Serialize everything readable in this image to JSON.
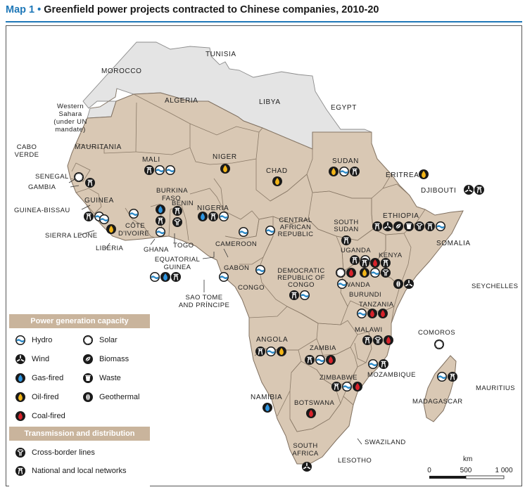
{
  "title": {
    "map_label": "Map 1",
    "bullet": "•",
    "text": "Greenfield power projects contracted to Chinese companies, 2010-20"
  },
  "colors": {
    "accent": "#1f78b8",
    "africa_land": "#d9c8b4",
    "non_focus_land": "#e4e4e4",
    "border": "#7f6f5f",
    "legend_header": "#c9b49c",
    "icon_dark": "#1a1a1a",
    "hydro_blue": "#2e8bc8",
    "gas_blue": "#1f6fb8",
    "oil_yellow": "#f2b518",
    "coal_red": "#d7232b"
  },
  "countries": {
    "tunisia": "TUNISIA",
    "morocco": "MOROCCO",
    "algeria": "ALGERIA",
    "libya": "LIBYA",
    "egypt": "EGYPT",
    "western_sahara": [
      "Western",
      "Sahara",
      "(under UN",
      "mandate)"
    ],
    "cabo_verde": [
      "CABO",
      "VERDE"
    ],
    "mauritania": "MAURITANIA",
    "mali": "MALI",
    "niger": "NIGER",
    "chad": "CHAD",
    "sudan": "SUDAN",
    "eritrea": "ERITREA",
    "djibouti": "DJIBOUTI",
    "senegal": "SENEGAL",
    "gambia": "GAMBIA",
    "guinea_bissau": "GUINEA-BISSAU",
    "guinea": "GUINEA",
    "sierra_leone": "SIERRA LEONE",
    "liberia": "LIBERIA",
    "burkina_faso": [
      "BURKINA",
      "FASO"
    ],
    "benin": "BENIN",
    "cote_divoire": [
      "CÔTE",
      "D'IVOIRE"
    ],
    "ghana": "GHANA",
    "togo": "TOGO",
    "nigeria": "NIGERIA",
    "ethiopia": "ETHIOPIA",
    "somalia": "SOMALIA",
    "car": [
      "CENTRAL",
      "AFRICAN",
      "REPUBLIC"
    ],
    "south_sudan": [
      "SOUTH",
      "SUDAN"
    ],
    "cameroon": "CAMEROON",
    "equatorial_guinea": [
      "EQUATORIAL",
      "GUINEA"
    ],
    "gabon": "GABON",
    "congo": "CONGO",
    "sao_tome": [
      "SAO TOME",
      "AND PRÍNCIPE"
    ],
    "drc": [
      "DEMOCRATIC",
      "REPUBLIC OF",
      "CONGO"
    ],
    "uganda": "UGANDA",
    "kenya": "KENYA",
    "rwanda": "RWANDA",
    "burundi": "BURUNDI",
    "tanzania": "TANZANIA",
    "seychelles": "SEYCHELLES",
    "angola": "ANGOLA",
    "zambia": "ZAMBIA",
    "malawi": "MALAWI",
    "comoros": "COMOROS",
    "mozambique": "MOZAMBIQUE",
    "zimbabwe": "ZIMBABWE",
    "mauritius": "MAURITIUS",
    "madagascar": "MADAGASCAR",
    "namibia": "NAMIBIA",
    "botswana": "BOTSWANA",
    "swaziland": "SWAZILAND",
    "south_africa": [
      "SOUTH",
      "AFRICA"
    ],
    "lesotho": "LESOTHO"
  },
  "projects": [
    {
      "country": "Mali",
      "types": [
        "national",
        "hydro",
        "hydro"
      ]
    },
    {
      "country": "Niger",
      "types": [
        "oil"
      ]
    },
    {
      "country": "Chad",
      "types": [
        "oil"
      ]
    },
    {
      "country": "Sudan",
      "types": [
        "oil",
        "hydro",
        "national"
      ]
    },
    {
      "country": "Eritrea",
      "types": [
        "oil"
      ]
    },
    {
      "country": "Djibouti",
      "types": [
        "wind",
        "national"
      ]
    },
    {
      "country": "Senegal",
      "types": [
        "solar"
      ]
    },
    {
      "country": "Gambia",
      "types": [
        "national"
      ]
    },
    {
      "country": "Guinea",
      "types": [
        "national",
        "hydro"
      ]
    },
    {
      "country": "Sierra Leone",
      "types": [
        "hydro"
      ]
    },
    {
      "country": "Liberia",
      "types": [
        "oil"
      ]
    },
    {
      "country": "Côte d'Ivoire",
      "types": [
        "hydro"
      ]
    },
    {
      "country": "Burkina Faso",
      "types": [
        "gas",
        "national",
        "hydro"
      ]
    },
    {
      "country": "Benin",
      "types": [
        "national",
        "crossborder"
      ]
    },
    {
      "country": "Nigeria",
      "types": [
        "gas",
        "national",
        "hydro"
      ]
    },
    {
      "country": "Ethiopia",
      "types": [
        "national",
        "wind",
        "biomass",
        "waste",
        "crossborder",
        "national",
        "hydro"
      ]
    },
    {
      "country": "South Sudan",
      "types": [
        "national"
      ]
    },
    {
      "country": "Central African Republic",
      "types": [
        "hydro"
      ]
    },
    {
      "country": "Cameroon",
      "types": [
        "hydro"
      ]
    },
    {
      "country": "Equatorial Guinea",
      "types": [
        "hydro",
        "gas",
        "national"
      ]
    },
    {
      "country": "Gabon",
      "types": [
        "hydro"
      ]
    },
    {
      "country": "Congo",
      "types": [
        "hydro"
      ]
    },
    {
      "country": "DRC",
      "types": [
        "national",
        "hydro"
      ]
    },
    {
      "country": "Uganda",
      "types": [
        "national",
        "hydro"
      ]
    },
    {
      "country": "Kenya",
      "types": [
        "national",
        "coal",
        "national",
        "oil",
        "hydro",
        "crossborder",
        "geothermal",
        "wind"
      ]
    },
    {
      "country": "Rwanda",
      "types": [
        "solar",
        "coal"
      ]
    },
    {
      "country": "Burundi",
      "types": [
        "hydro"
      ]
    },
    {
      "country": "Tanzania",
      "types": [
        "hydro",
        "coal",
        "coal"
      ]
    },
    {
      "country": "Angola",
      "types": [
        "national",
        "hydro",
        "oil"
      ]
    },
    {
      "country": "Zambia",
      "types": [
        "national",
        "hydro",
        "coal"
      ]
    },
    {
      "country": "Malawi",
      "types": [
        "national",
        "crossborder",
        "coal"
      ]
    },
    {
      "country": "Mozambique",
      "types": [
        "hydro",
        "national"
      ]
    },
    {
      "country": "Zimbabwe",
      "types": [
        "national",
        "hydro",
        "coal"
      ]
    },
    {
      "country": "Comoros",
      "types": [
        "solar"
      ]
    },
    {
      "country": "Madagascar",
      "types": [
        "hydro",
        "national"
      ]
    },
    {
      "country": "Namibia",
      "types": [
        "gas"
      ]
    },
    {
      "country": "Botswana",
      "types": [
        "coal"
      ]
    },
    {
      "country": "South Africa",
      "types": [
        "wind"
      ]
    }
  ],
  "legend": {
    "gen_header": "Power generation capacity",
    "gen_items": [
      {
        "icon": "hydro-icon",
        "label": "Hydro"
      },
      {
        "icon": "solar-icon",
        "label": "Solar"
      },
      {
        "icon": "wind-icon",
        "label": "Wind"
      },
      {
        "icon": "biomass-icon",
        "label": "Biomass"
      },
      {
        "icon": "gas-fired-icon",
        "label": "Gas-fired"
      },
      {
        "icon": "waste-icon",
        "label": "Waste"
      },
      {
        "icon": "oil-fired-icon",
        "label": "Oil-fired"
      },
      {
        "icon": "geothermal-icon",
        "label": "Geothermal"
      },
      {
        "icon": "coal-fired-icon",
        "label": "Coal-fired"
      }
    ],
    "td_header": "Transmission and distribution",
    "td_items": [
      {
        "icon": "cross-border-lines-icon",
        "label": "Cross-border lines"
      },
      {
        "icon": "national-local-networks-icon",
        "label": "National and local networks"
      }
    ]
  },
  "scale": {
    "unit": "km",
    "ticks": [
      "0",
      "500",
      "1 000"
    ]
  }
}
